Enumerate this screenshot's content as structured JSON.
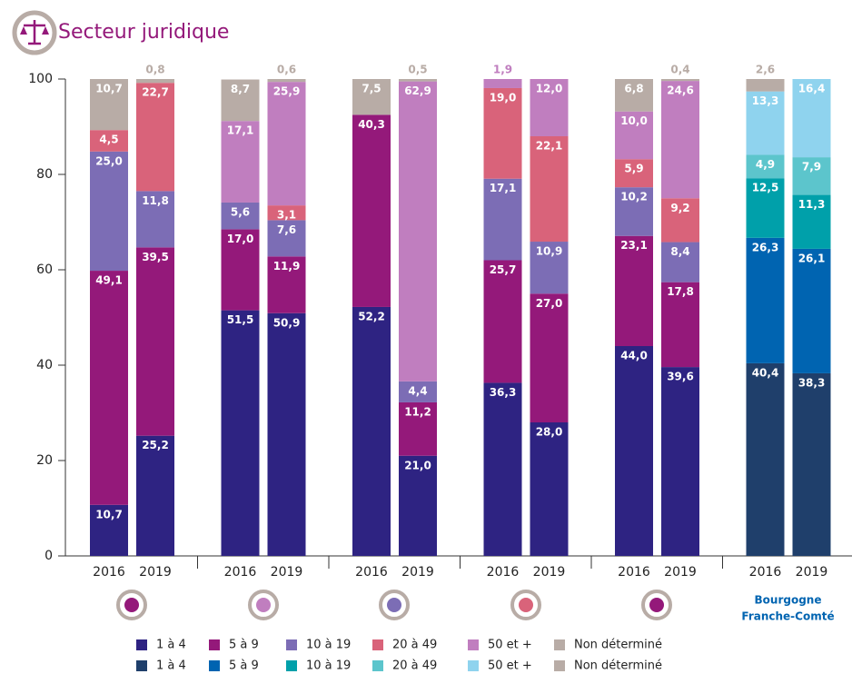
{
  "chart_data": {
    "type": "stacked_bar",
    "title": "Secteur juridique",
    "categories": [
      "2016",
      "2019",
      "2016",
      "2019",
      "2016",
      "2019",
      "2016",
      "2019",
      "2016",
      "2019",
      "2016",
      "2019"
    ],
    "group_labels": [
      null,
      null,
      null,
      null,
      null,
      [
        "Bourgogne",
        "Franche-Comté"
      ]
    ],
    "ylim": [
      0,
      100
    ],
    "yticks": [
      0,
      20,
      40,
      60,
      80,
      100
    ],
    "series": [
      {
        "name": "1 à 4",
        "color": "#2e2382",
        "values": [
          10.7,
          25.2,
          51.5,
          50.9,
          52.2,
          21.0,
          36.3,
          28.0,
          44.0,
          39.6,
          null,
          null
        ],
        "value_labels": [
          "10,7",
          "25,2",
          "51,5",
          "50,9",
          "52,2",
          "21,0",
          "36,3",
          "28,0",
          "44,0",
          "39,6",
          null,
          null
        ]
      },
      {
        "name": "5 à 9",
        "color": "#94197a",
        "values": [
          49.1,
          39.5,
          17.0,
          11.9,
          40.3,
          11.2,
          25.7,
          27.0,
          23.1,
          17.8,
          null,
          null
        ],
        "value_labels": [
          "49,1",
          "39,5",
          "17,0",
          "11,9",
          "40,3",
          "11,2",
          "25,7",
          "27,0",
          "23,1",
          "17,8",
          null,
          null
        ]
      },
      {
        "name": "10 à 19",
        "color": "#7c6db5",
        "values": [
          25.0,
          11.8,
          5.6,
          7.6,
          null,
          4.4,
          17.1,
          10.9,
          10.2,
          8.4,
          null,
          null
        ],
        "value_labels": [
          "25,0",
          "11,8",
          "5,6",
          "7,6",
          null,
          "4,4",
          "17,1",
          "10,9",
          "10,2",
          "8,4",
          null,
          null
        ]
      },
      {
        "name": "20 à 49",
        "color": "#d9637a",
        "values": [
          4.5,
          22.7,
          null,
          3.1,
          null,
          null,
          19.0,
          22.1,
          5.9,
          9.2,
          null,
          null
        ],
        "value_labels": [
          "4,5",
          "22,7",
          null,
          "3,1",
          null,
          null,
          "19,0",
          "22,1",
          "5,9",
          "9,2",
          null,
          null
        ]
      },
      {
        "name": "50 et +",
        "color": "#c07ebf",
        "values": [
          null,
          null,
          17.1,
          25.9,
          null,
          62.9,
          1.9,
          12.0,
          10.0,
          24.6,
          null,
          null
        ],
        "value_labels": [
          null,
          null,
          "17,1",
          "25,9",
          null,
          "62,9",
          "1,9",
          "12,0",
          "10,0",
          "24,6",
          null,
          null
        ]
      },
      {
        "name": "Non déterminé",
        "color": "#b8aca6",
        "values": [
          10.7,
          0.8,
          8.7,
          0.6,
          7.5,
          0.5,
          null,
          null,
          6.8,
          0.4,
          null,
          null
        ],
        "value_labels": [
          "10,7",
          "0,8",
          "8,7",
          "0,6",
          "7,5",
          "0,5",
          null,
          null,
          "6,8",
          "0,4",
          null,
          null
        ]
      },
      {
        "name": "1 à 4",
        "color": "#1f3f6b",
        "values": [
          null,
          null,
          null,
          null,
          null,
          null,
          null,
          null,
          null,
          null,
          40.4,
          38.3
        ],
        "value_labels": [
          null,
          null,
          null,
          null,
          null,
          null,
          null,
          null,
          null,
          null,
          "40,4",
          "38,3"
        ]
      },
      {
        "name": "5 à 9",
        "color": "#0064b1",
        "values": [
          null,
          null,
          null,
          null,
          null,
          null,
          null,
          null,
          null,
          null,
          26.3,
          26.1
        ],
        "value_labels": [
          null,
          null,
          null,
          null,
          null,
          null,
          null,
          null,
          null,
          null,
          "26,3",
          "26,1"
        ]
      },
      {
        "name": "10 à 19",
        "color": "#00a0aa",
        "values": [
          null,
          null,
          null,
          null,
          null,
          null,
          null,
          null,
          null,
          null,
          12.5,
          11.3
        ],
        "value_labels": [
          null,
          null,
          null,
          null,
          null,
          null,
          null,
          null,
          null,
          null,
          "12,5",
          "11,3"
        ]
      },
      {
        "name": "20 à 49",
        "color": "#5cc5cc",
        "values": [
          null,
          null,
          null,
          null,
          null,
          null,
          null,
          null,
          null,
          null,
          4.9,
          7.9
        ],
        "value_labels": [
          null,
          null,
          null,
          null,
          null,
          null,
          null,
          null,
          null,
          null,
          "4,9",
          "7,9"
        ]
      },
      {
        "name": "50 et +",
        "color": "#8fd3ee",
        "values": [
          null,
          null,
          null,
          null,
          null,
          null,
          null,
          null,
          null,
          null,
          13.3,
          16.4
        ],
        "value_labels": [
          null,
          null,
          null,
          null,
          null,
          null,
          null,
          null,
          null,
          null,
          "13,3",
          "16,4"
        ]
      },
      {
        "name": "Non déterminé",
        "color": "#b8aca6",
        "values": [
          null,
          null,
          null,
          null,
          null,
          null,
          null,
          null,
          null,
          null,
          2.6,
          null
        ],
        "value_labels": [
          null,
          null,
          null,
          null,
          null,
          null,
          null,
          null,
          null,
          null,
          "2,6",
          null
        ]
      }
    ]
  }
}
